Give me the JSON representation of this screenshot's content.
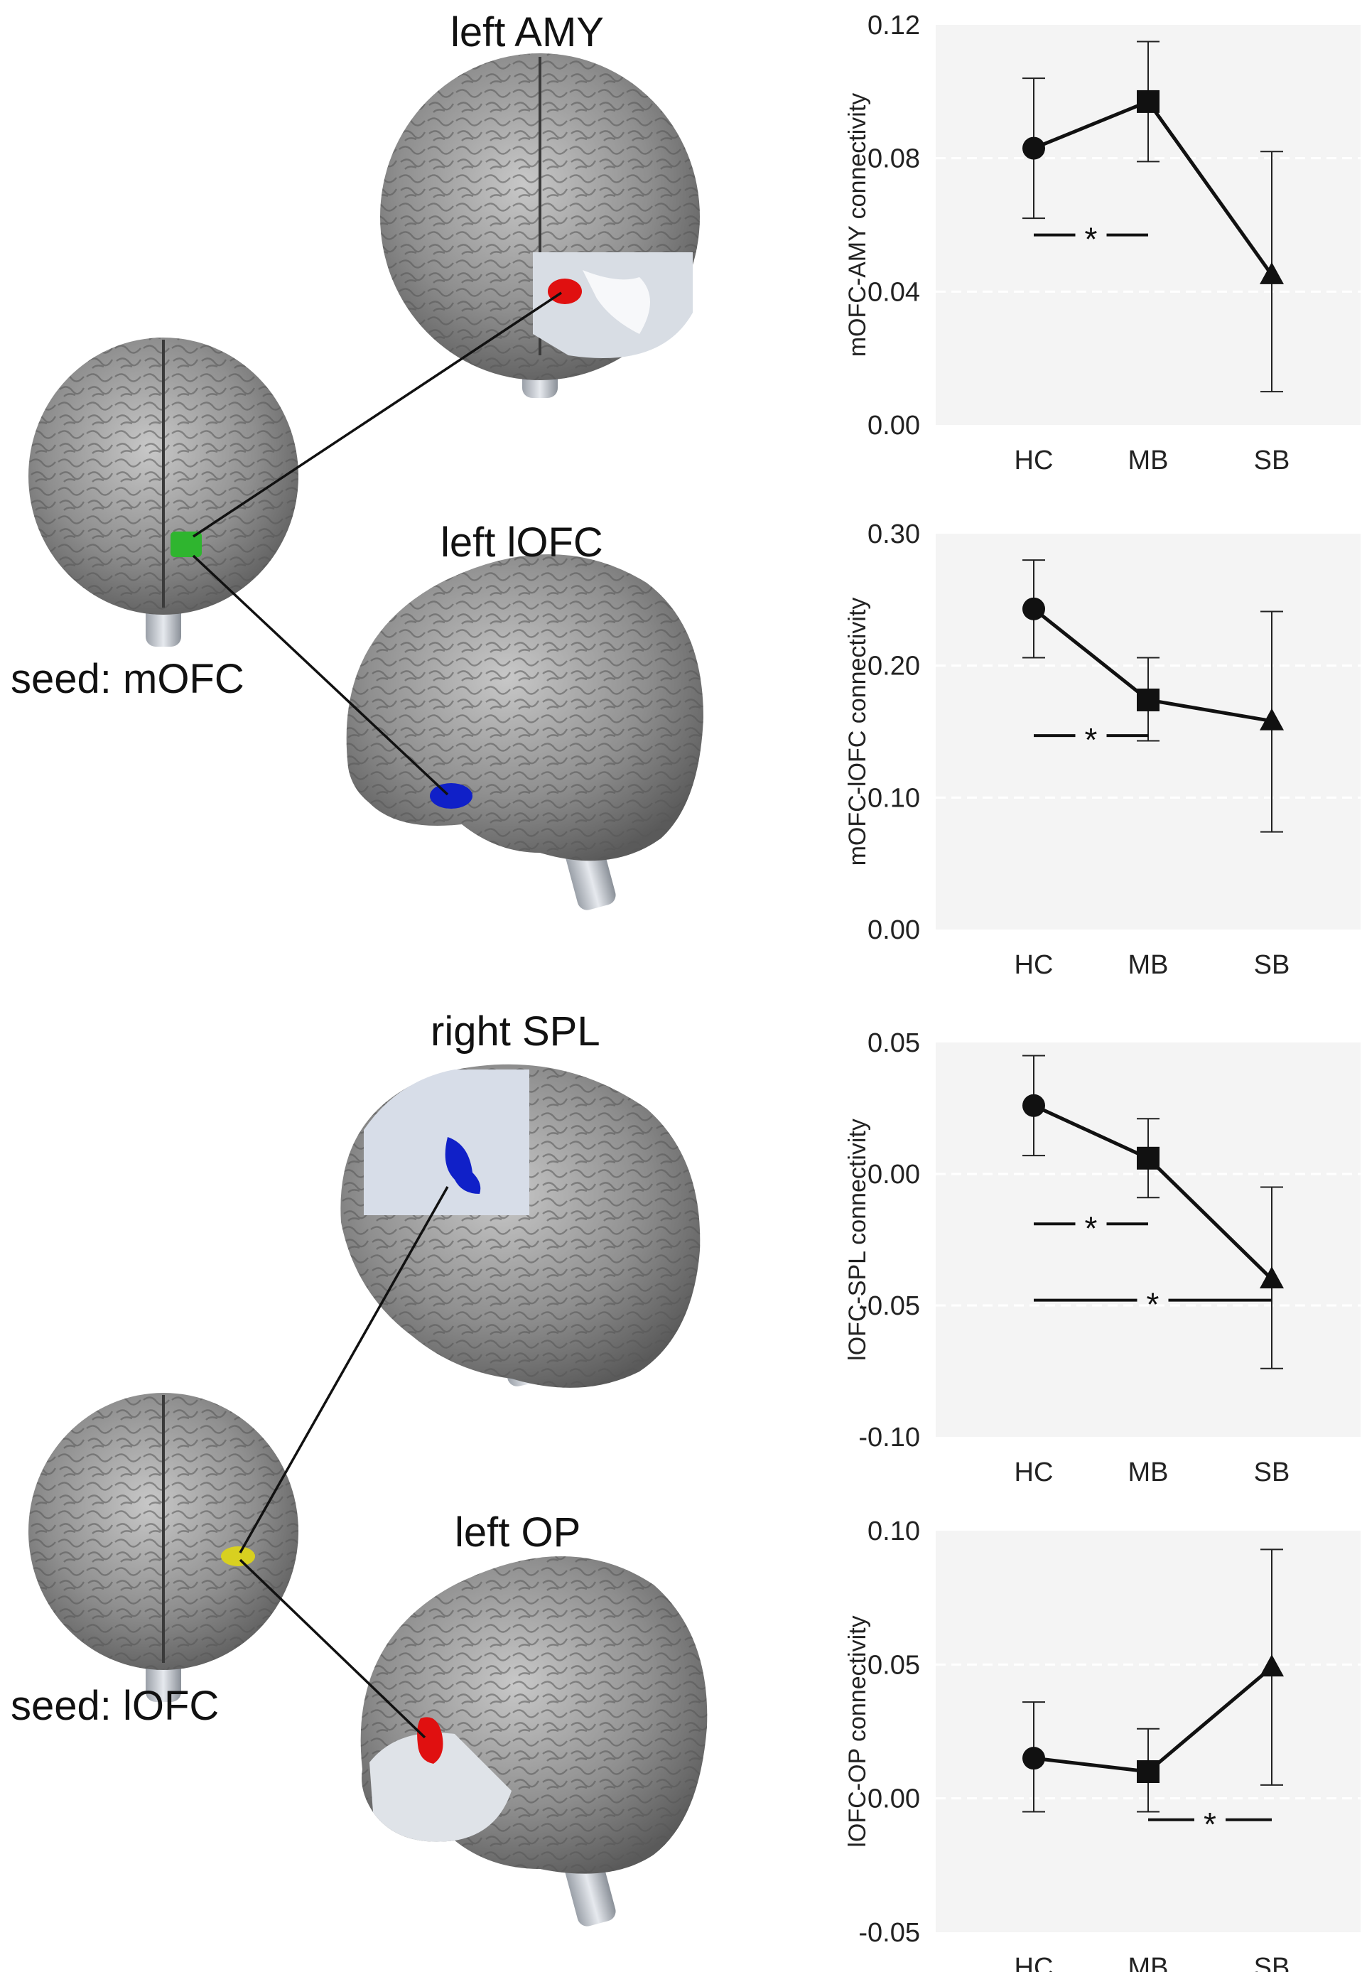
{
  "labels": {
    "roi_top1": "left AMY",
    "roi_top2": "left lOFC",
    "seed_top": "seed: mOFC",
    "roi_bot1": "right SPL",
    "roi_bot2": "left OP",
    "seed_bot": "seed: lOFC"
  },
  "colors": {
    "green_seed": "#2fb52f",
    "red_roi": "#e01010",
    "blue_roi": "#1020c8",
    "yellow_seed": "#d8d020",
    "panel_bg": "#f4f4f4"
  },
  "chart_data": [
    {
      "type": "line",
      "categories": [
        "HC",
        "MB",
        "SB"
      ],
      "values": [
        0.083,
        0.097,
        0.045
      ],
      "error_low": [
        0.062,
        0.079,
        0.01
      ],
      "error_high": [
        0.104,
        0.115,
        0.082
      ],
      "markers": [
        "circle",
        "square",
        "triangle"
      ],
      "ylabel": "mOFC-AMY connectivity",
      "ylim": [
        0.0,
        0.12
      ],
      "yticks": [
        "0.00",
        "0.04",
        "0.08",
        "0.12"
      ],
      "ytick_values": [
        0.0,
        0.04,
        0.08,
        0.12
      ],
      "significance": [
        {
          "from": "HC",
          "to": "MB",
          "y": 0.057,
          "label": "*"
        }
      ]
    },
    {
      "type": "line",
      "categories": [
        "HC",
        "MB",
        "SB"
      ],
      "values": [
        0.243,
        0.174,
        0.158
      ],
      "error_low": [
        0.206,
        0.143,
        0.074
      ],
      "error_high": [
        0.28,
        0.206,
        0.241
      ],
      "markers": [
        "circle",
        "square",
        "triangle"
      ],
      "ylabel": "mOFC-lOFC connectivity",
      "ylim": [
        0.0,
        0.3
      ],
      "yticks": [
        "0.00",
        "0.10",
        "0.20",
        "0.30"
      ],
      "ytick_values": [
        0.0,
        0.1,
        0.2,
        0.3
      ],
      "significance": [
        {
          "from": "HC",
          "to": "MB",
          "y": 0.147,
          "label": "*"
        }
      ]
    },
    {
      "type": "line",
      "categories": [
        "HC",
        "MB",
        "SB"
      ],
      "values": [
        0.026,
        0.006,
        -0.04
      ],
      "error_low": [
        0.007,
        -0.009,
        -0.074
      ],
      "error_high": [
        0.045,
        0.021,
        -0.005
      ],
      "markers": [
        "circle",
        "square",
        "triangle"
      ],
      "ylabel": "lOFC-SPL connectivity",
      "ylim": [
        -0.1,
        0.05
      ],
      "yticks": [
        "-0.10",
        "-0.05",
        "0.00",
        "0.05"
      ],
      "ytick_values": [
        -0.1,
        -0.05,
        0.0,
        0.05
      ],
      "significance": [
        {
          "from": "HC",
          "to": "MB",
          "y": -0.019,
          "label": "*"
        },
        {
          "from": "HC",
          "to": "SB",
          "y": -0.048,
          "label": "*"
        }
      ]
    },
    {
      "type": "line",
      "categories": [
        "HC",
        "MB",
        "SB"
      ],
      "values": [
        0.015,
        0.01,
        0.049
      ],
      "error_low": [
        -0.005,
        -0.005,
        0.005
      ],
      "error_high": [
        0.036,
        0.026,
        0.093
      ],
      "markers": [
        "circle",
        "square",
        "triangle"
      ],
      "ylabel": "lOFC-OP connectivity",
      "ylim": [
        -0.05,
        0.1
      ],
      "yticks": [
        "-0.05",
        "0.00",
        "0.05",
        "0.10"
      ],
      "ytick_values": [
        -0.05,
        0.0,
        0.05,
        0.1
      ],
      "significance": [
        {
          "from": "MB",
          "to": "SB",
          "y": -0.008,
          "label": "*"
        }
      ]
    }
  ]
}
